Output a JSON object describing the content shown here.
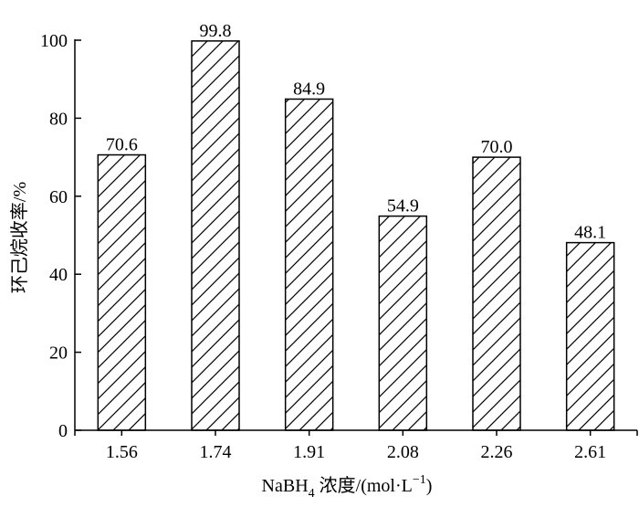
{
  "chart_data": {
    "type": "bar",
    "categories": [
      "1.56",
      "1.74",
      "1.91",
      "2.08",
      "2.26",
      "2.61"
    ],
    "values": [
      70.6,
      99.8,
      84.9,
      54.9,
      70.0,
      48.1
    ],
    "value_labels": [
      "70.6",
      "99.8",
      "84.9",
      "54.9",
      "70.0",
      "48.1"
    ],
    "title": "",
    "xlabel": {
      "main": "NaBH",
      "subscript": "4",
      "rest": " 浓度/(mol·L",
      "superscript": "−1",
      "end": ")"
    },
    "ylabel": "环己烷收率/%",
    "ylim": [
      0,
      100
    ],
    "yticks": [
      0,
      20,
      40,
      60,
      80,
      100
    ],
    "bar_fill": "diagonal-hatch",
    "grid": false,
    "legend": "none",
    "colors": {
      "bar_stroke": "#000000",
      "hatch": "#000000",
      "background": "#ffffff"
    }
  }
}
